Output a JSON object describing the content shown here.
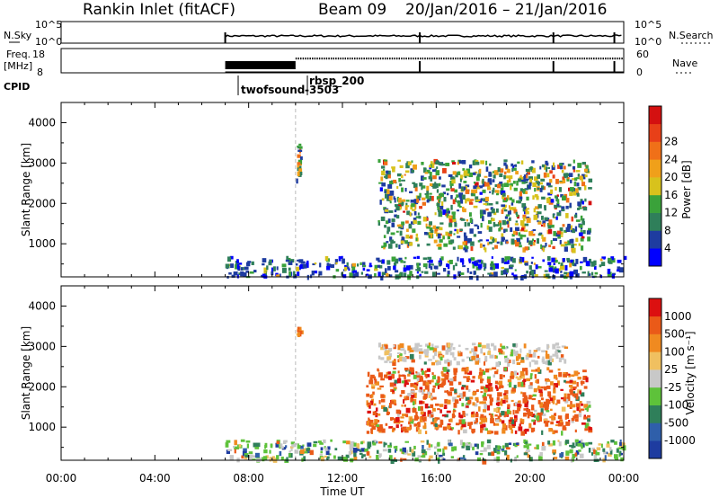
{
  "header": {
    "station": "Rankin Inlet (fitACF)",
    "beam": "Beam 09",
    "date_range": "20/Jan/2016 – 21/Jan/2016"
  },
  "top_strip": {
    "nsky_label": "N.Sky",
    "nsky_ticks": [
      "10^5",
      "10^0"
    ],
    "nsearch_label": "N.Search",
    "nsearch_ticks": [
      "10^5",
      "10^0"
    ],
    "freq_label": "Freq.",
    "freq_unit": "[MHz]",
    "freq_ticks": [
      "18",
      "8"
    ],
    "nave_label": "Nave",
    "nave_ticks": [
      "60",
      "0"
    ],
    "cpid_label": "CPID",
    "cpid_entries": [
      "twofsound",
      "-3503",
      "rbsp_200"
    ]
  },
  "colors": {
    "power_scale": [
      "#0000ff",
      "#1e3ca0",
      "#2f7f5a",
      "#3aa23a",
      "#d8c21c",
      "#f0a01a",
      "#f07018",
      "#e84018",
      "#d41010"
    ],
    "velocity_scale": [
      "#1e3ca0",
      "#2f5faa",
      "#2f7f5a",
      "#5ec23a",
      "#c8c8c8",
      "#f0c060",
      "#f08a20",
      "#ea5a18",
      "#dc1010"
    ]
  },
  "chart_data": [
    {
      "type": "heatmap",
      "title": "Power",
      "ylabel": "Slant Range [km]",
      "ylim": [
        180,
        4500
      ],
      "yticks": [
        1000,
        2000,
        3000,
        4000
      ],
      "colorbar": {
        "label": "Power [dB]",
        "ticks": [
          "4",
          "8",
          "12",
          "16",
          "20",
          "24",
          "28"
        ],
        "range": [
          0,
          32
        ]
      },
      "x": [
        "00:00",
        "04:00",
        "08:00",
        "12:00",
        "16:00",
        "20:00",
        "00:00"
      ]
    },
    {
      "type": "heatmap",
      "title": "Velocity",
      "ylabel": "Slant Range [km]",
      "ylim": [
        180,
        4500
      ],
      "yticks": [
        1000,
        2000,
        3000,
        4000
      ],
      "colorbar": {
        "label": "Velocity [m s⁻¹]",
        "ticks": [
          "1000",
          "500",
          "100",
          "25",
          "-25",
          "-100",
          "-500",
          "-1000"
        ]
      },
      "xlabel": "Time UT",
      "x": [
        "00:00",
        "04:00",
        "08:00",
        "12:00",
        "16:00",
        "20:00",
        "00:00"
      ]
    }
  ]
}
